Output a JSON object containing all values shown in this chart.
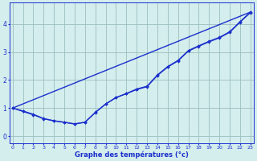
{
  "xlabel": "Graphe des températures (°c)",
  "bg_color": "#d4eded",
  "line_color": "#1a2fcc",
  "grid_color": "#9bbfbf",
  "x_ticks": [
    0,
    1,
    2,
    3,
    4,
    5,
    6,
    7,
    8,
    9,
    10,
    11,
    12,
    13,
    14,
    15,
    16,
    17,
    18,
    19,
    20,
    21,
    22,
    23
  ],
  "y_ticks": [
    0,
    1,
    2,
    3,
    4
  ],
  "xlim": [
    -0.3,
    23.3
  ],
  "ylim": [
    -0.25,
    4.75
  ],
  "line1_x": [
    0,
    1,
    2,
    3,
    4,
    5,
    6,
    7,
    8,
    9,
    10,
    11,
    12,
    13,
    14,
    15,
    16,
    17,
    18,
    19,
    20,
    21,
    22,
    23
  ],
  "line1_y": [
    1.0,
    0.9,
    0.78,
    0.63,
    0.55,
    0.5,
    0.44,
    0.5,
    0.85,
    1.15,
    1.38,
    1.52,
    1.68,
    1.78,
    2.18,
    2.48,
    2.7,
    3.05,
    3.22,
    3.38,
    3.52,
    3.72,
    4.08,
    4.42
  ],
  "line2_x": [
    0,
    1,
    2,
    3,
    4,
    5,
    6,
    7,
    8,
    9,
    10,
    11,
    12,
    13,
    14,
    15,
    16,
    17,
    18,
    19,
    20,
    21,
    22,
    23
  ],
  "line2_y": [
    1.0,
    0.88,
    0.76,
    0.62,
    0.54,
    0.49,
    0.43,
    0.49,
    0.84,
    1.14,
    1.37,
    1.51,
    1.66,
    1.76,
    2.16,
    2.46,
    2.68,
    3.03,
    3.2,
    3.36,
    3.5,
    3.7,
    4.06,
    4.4
  ],
  "line3_x": [
    0,
    23
  ],
  "line3_y": [
    1.0,
    4.42
  ]
}
